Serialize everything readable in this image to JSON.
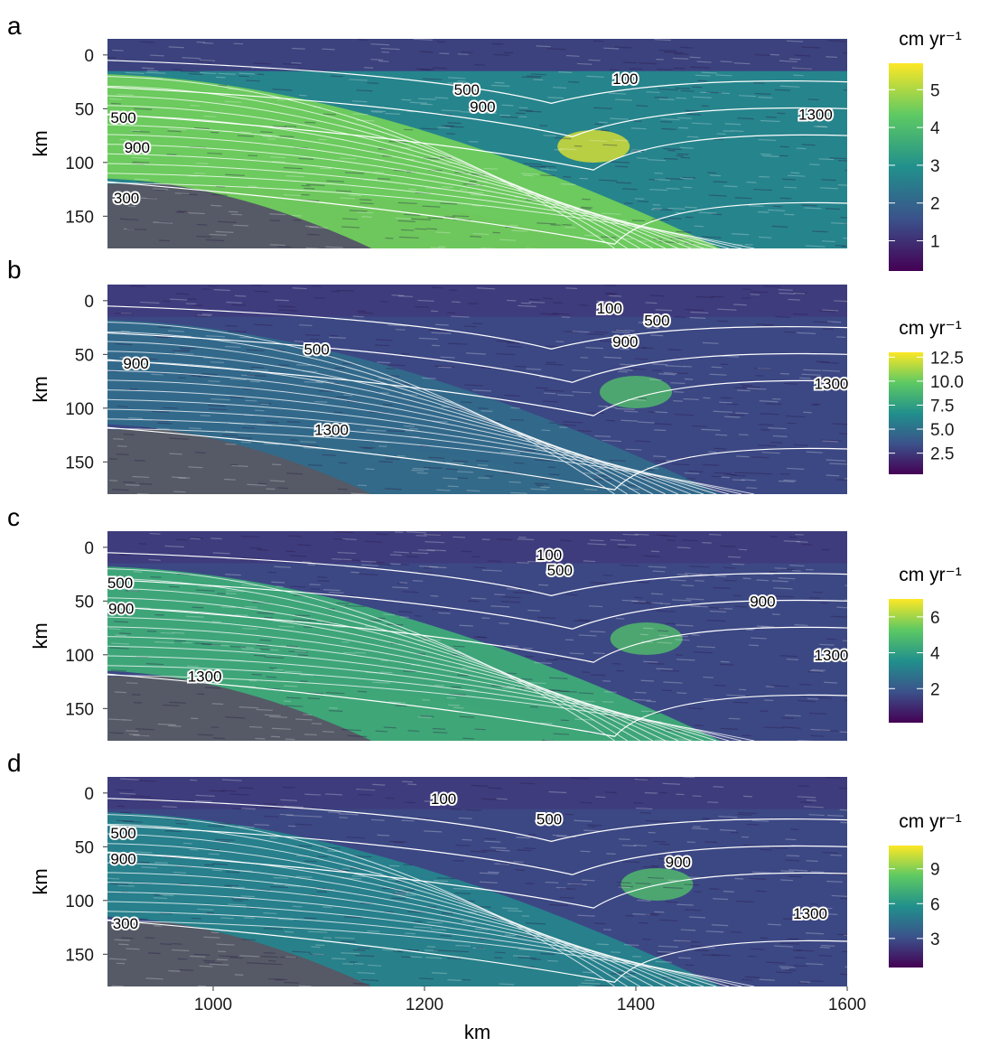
{
  "chart_data": [
    {
      "type": "heatmap",
      "panel": "a",
      "xlabel": "",
      "ylabel": "km",
      "xlim": [
        900,
        1600
      ],
      "ylim": [
        180,
        -15
      ],
      "y_ticks": [
        "0",
        "50",
        "100",
        "150"
      ],
      "x_ticks": [],
      "colorbar": {
        "title": "cm yr⁻¹",
        "range": [
          0.2,
          5.7
        ],
        "ticks": [
          "1",
          "2",
          "3",
          "4",
          "5"
        ]
      },
      "isotherm_labels": [
        {
          "text": "100",
          "x": 1390,
          "y": 22
        },
        {
          "text": "500",
          "x": 1240,
          "y": 32
        },
        {
          "text": "900",
          "x": 1255,
          "y": 48
        },
        {
          "text": "1300",
          "x": 1570,
          "y": 55
        },
        {
          "text": "500",
          "x": 915,
          "y": 58
        },
        {
          "text": "900",
          "x": 928,
          "y": 86
        },
        {
          "text": "300",
          "x": 918,
          "y": 133
        }
      ]
    },
    {
      "type": "heatmap",
      "panel": "b",
      "xlabel": "",
      "ylabel": "km",
      "xlim": [
        900,
        1600
      ],
      "ylim": [
        180,
        -15
      ],
      "y_ticks": [
        "0",
        "50",
        "100",
        "150"
      ],
      "x_ticks": [],
      "colorbar": {
        "title": "cm yr⁻¹",
        "range": [
          0.3,
          13
        ],
        "ticks": [
          "2.5",
          "5.0",
          "7.5",
          "10.0",
          "12.5"
        ]
      },
      "isotherm_labels": [
        {
          "text": "100",
          "x": 1375,
          "y": 7
        },
        {
          "text": "500",
          "x": 1420,
          "y": 18
        },
        {
          "text": "900",
          "x": 1390,
          "y": 38
        },
        {
          "text": "900",
          "x": 927,
          "y": 58
        },
        {
          "text": "500",
          "x": 1098,
          "y": 45
        },
        {
          "text": "1300",
          "x": 1585,
          "y": 77
        },
        {
          "text": "1300",
          "x": 1112,
          "y": 120
        }
      ]
    },
    {
      "type": "heatmap",
      "panel": "c",
      "xlabel": "",
      "ylabel": "km",
      "xlim": [
        900,
        1600
      ],
      "ylim": [
        180,
        -15
      ],
      "y_ticks": [
        "0",
        "50",
        "100",
        "150"
      ],
      "x_ticks": [],
      "colorbar": {
        "title": "cm yr⁻¹",
        "range": [
          0.1,
          7
        ],
        "ticks": [
          "2",
          "4",
          "6"
        ]
      },
      "isotherm_labels": [
        {
          "text": "100",
          "x": 1318,
          "y": 7
        },
        {
          "text": "500",
          "x": 1328,
          "y": 21
        },
        {
          "text": "900",
          "x": 1520,
          "y": 50
        },
        {
          "text": "1300",
          "x": 1585,
          "y": 100
        },
        {
          "text": "500",
          "x": 912,
          "y": 33
        },
        {
          "text": "900",
          "x": 913,
          "y": 57
        },
        {
          "text": "1300",
          "x": 992,
          "y": 120
        }
      ]
    },
    {
      "type": "heatmap",
      "panel": "d",
      "xlabel": "km",
      "ylabel": "km",
      "xlim": [
        900,
        1600
      ],
      "ylim": [
        180,
        -15
      ],
      "y_ticks": [
        "0",
        "50",
        "100",
        "150"
      ],
      "x_ticks": [
        "1000",
        "1200",
        "1400",
        "1600"
      ],
      "colorbar": {
        "title": "cm yr⁻¹",
        "range": [
          0.5,
          11
        ],
        "ticks": [
          "3",
          "6",
          "9"
        ]
      },
      "isotherm_labels": [
        {
          "text": "100",
          "x": 1218,
          "y": 5
        },
        {
          "text": "500",
          "x": 1318,
          "y": 24
        },
        {
          "text": "900",
          "x": 1440,
          "y": 64
        },
        {
          "text": "1300",
          "x": 1565,
          "y": 112
        },
        {
          "text": "500",
          "x": 915,
          "y": 37
        },
        {
          "text": "900",
          "x": 915,
          "y": 61
        },
        {
          "text": "300",
          "x": 917,
          "y": 121
        }
      ]
    }
  ]
}
